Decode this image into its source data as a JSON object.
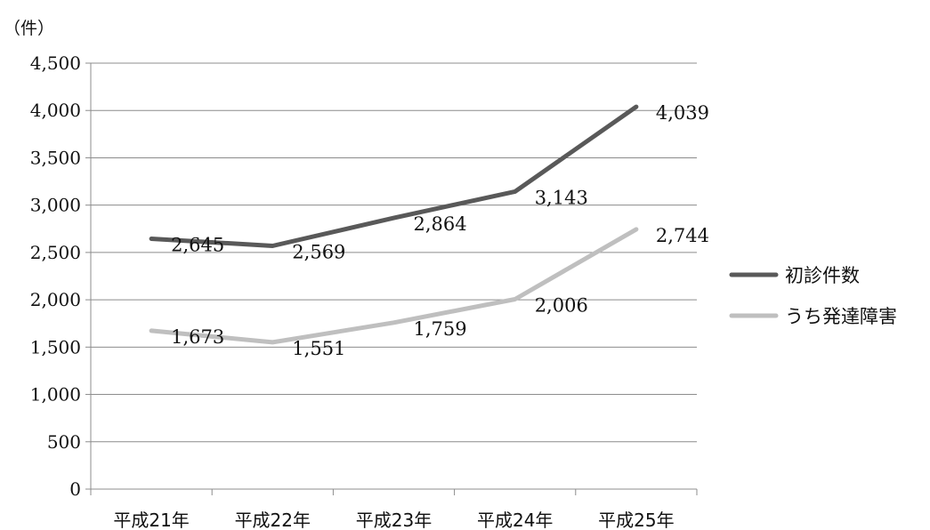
{
  "chart_data": {
    "type": "line",
    "unit_label": "（件）",
    "categories": [
      "平成21年",
      "平成22年",
      "平成23年",
      "平成24年",
      "平成25年"
    ],
    "series": [
      {
        "name": "初診件数",
        "values": [
          2645,
          2569,
          2864,
          3143,
          4039
        ],
        "labels": [
          "2,645",
          "2,569",
          "2,864",
          "3,143",
          "4,039"
        ],
        "color": "#595959"
      },
      {
        "name": "うち発達障害",
        "values": [
          1673,
          1551,
          1759,
          2006,
          2744
        ],
        "labels": [
          "1,673",
          "1,551",
          "1,759",
          "2,006",
          "2,744"
        ],
        "color": "#bfbfbf"
      }
    ],
    "ylim": [
      0,
      4500
    ],
    "yticks": [
      0,
      500,
      1000,
      1500,
      2000,
      2500,
      3000,
      3500,
      4000,
      4500
    ],
    "ytick_labels": [
      "0",
      "500",
      "1,000",
      "1,500",
      "2,000",
      "2,500",
      "3,000",
      "3,500",
      "4,000",
      "4,500"
    ],
    "grid": true,
    "legend_position": "right"
  }
}
